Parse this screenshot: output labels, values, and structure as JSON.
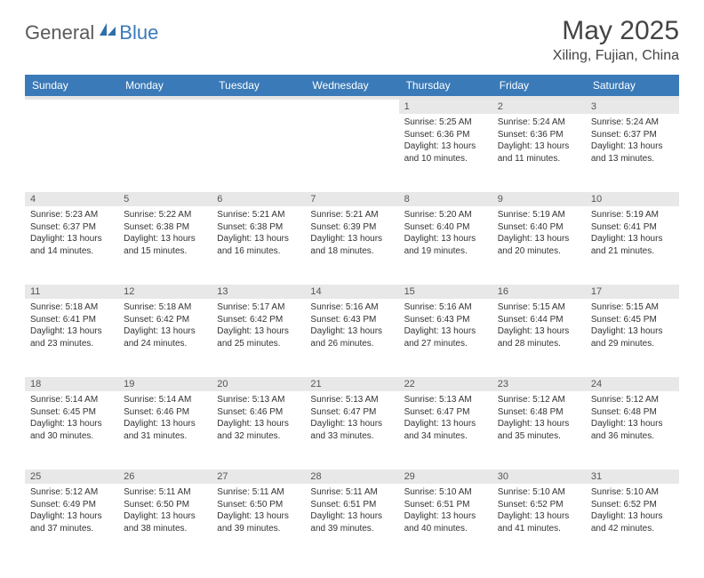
{
  "logo": {
    "text1": "General",
    "text2": "Blue"
  },
  "title": "May 2025",
  "location": "Xiling, Fujian, China",
  "styling": {
    "header_bg": "#3a7ab8",
    "header_text": "#ffffff",
    "daynum_bg": "#e8e8e8",
    "daynum_text": "#555555",
    "body_text": "#333333",
    "page_bg": "#ffffff",
    "title_fontsize": 30,
    "location_fontsize": 16,
    "th_fontsize": 12,
    "cell_fontsize": 10,
    "daynum_fontsize": 11
  },
  "days_of_week": [
    "Sunday",
    "Monday",
    "Tuesday",
    "Wednesday",
    "Thursday",
    "Friday",
    "Saturday"
  ],
  "weeks": [
    [
      null,
      null,
      null,
      null,
      {
        "n": "1",
        "sr": "5:25 AM",
        "ss": "6:36 PM",
        "dl": "13 hours and 10 minutes."
      },
      {
        "n": "2",
        "sr": "5:24 AM",
        "ss": "6:36 PM",
        "dl": "13 hours and 11 minutes."
      },
      {
        "n": "3",
        "sr": "5:24 AM",
        "ss": "6:37 PM",
        "dl": "13 hours and 13 minutes."
      }
    ],
    [
      {
        "n": "4",
        "sr": "5:23 AM",
        "ss": "6:37 PM",
        "dl": "13 hours and 14 minutes."
      },
      {
        "n": "5",
        "sr": "5:22 AM",
        "ss": "6:38 PM",
        "dl": "13 hours and 15 minutes."
      },
      {
        "n": "6",
        "sr": "5:21 AM",
        "ss": "6:38 PM",
        "dl": "13 hours and 16 minutes."
      },
      {
        "n": "7",
        "sr": "5:21 AM",
        "ss": "6:39 PM",
        "dl": "13 hours and 18 minutes."
      },
      {
        "n": "8",
        "sr": "5:20 AM",
        "ss": "6:40 PM",
        "dl": "13 hours and 19 minutes."
      },
      {
        "n": "9",
        "sr": "5:19 AM",
        "ss": "6:40 PM",
        "dl": "13 hours and 20 minutes."
      },
      {
        "n": "10",
        "sr": "5:19 AM",
        "ss": "6:41 PM",
        "dl": "13 hours and 21 minutes."
      }
    ],
    [
      {
        "n": "11",
        "sr": "5:18 AM",
        "ss": "6:41 PM",
        "dl": "13 hours and 23 minutes."
      },
      {
        "n": "12",
        "sr": "5:18 AM",
        "ss": "6:42 PM",
        "dl": "13 hours and 24 minutes."
      },
      {
        "n": "13",
        "sr": "5:17 AM",
        "ss": "6:42 PM",
        "dl": "13 hours and 25 minutes."
      },
      {
        "n": "14",
        "sr": "5:16 AM",
        "ss": "6:43 PM",
        "dl": "13 hours and 26 minutes."
      },
      {
        "n": "15",
        "sr": "5:16 AM",
        "ss": "6:43 PM",
        "dl": "13 hours and 27 minutes."
      },
      {
        "n": "16",
        "sr": "5:15 AM",
        "ss": "6:44 PM",
        "dl": "13 hours and 28 minutes."
      },
      {
        "n": "17",
        "sr": "5:15 AM",
        "ss": "6:45 PM",
        "dl": "13 hours and 29 minutes."
      }
    ],
    [
      {
        "n": "18",
        "sr": "5:14 AM",
        "ss": "6:45 PM",
        "dl": "13 hours and 30 minutes."
      },
      {
        "n": "19",
        "sr": "5:14 AM",
        "ss": "6:46 PM",
        "dl": "13 hours and 31 minutes."
      },
      {
        "n": "20",
        "sr": "5:13 AM",
        "ss": "6:46 PM",
        "dl": "13 hours and 32 minutes."
      },
      {
        "n": "21",
        "sr": "5:13 AM",
        "ss": "6:47 PM",
        "dl": "13 hours and 33 minutes."
      },
      {
        "n": "22",
        "sr": "5:13 AM",
        "ss": "6:47 PM",
        "dl": "13 hours and 34 minutes."
      },
      {
        "n": "23",
        "sr": "5:12 AM",
        "ss": "6:48 PM",
        "dl": "13 hours and 35 minutes."
      },
      {
        "n": "24",
        "sr": "5:12 AM",
        "ss": "6:48 PM",
        "dl": "13 hours and 36 minutes."
      }
    ],
    [
      {
        "n": "25",
        "sr": "5:12 AM",
        "ss": "6:49 PM",
        "dl": "13 hours and 37 minutes."
      },
      {
        "n": "26",
        "sr": "5:11 AM",
        "ss": "6:50 PM",
        "dl": "13 hours and 38 minutes."
      },
      {
        "n": "27",
        "sr": "5:11 AM",
        "ss": "6:50 PM",
        "dl": "13 hours and 39 minutes."
      },
      {
        "n": "28",
        "sr": "5:11 AM",
        "ss": "6:51 PM",
        "dl": "13 hours and 39 minutes."
      },
      {
        "n": "29",
        "sr": "5:10 AM",
        "ss": "6:51 PM",
        "dl": "13 hours and 40 minutes."
      },
      {
        "n": "30",
        "sr": "5:10 AM",
        "ss": "6:52 PM",
        "dl": "13 hours and 41 minutes."
      },
      {
        "n": "31",
        "sr": "5:10 AM",
        "ss": "6:52 PM",
        "dl": "13 hours and 42 minutes."
      }
    ]
  ],
  "labels": {
    "sunrise": "Sunrise:",
    "sunset": "Sunset:",
    "daylight": "Daylight:"
  }
}
